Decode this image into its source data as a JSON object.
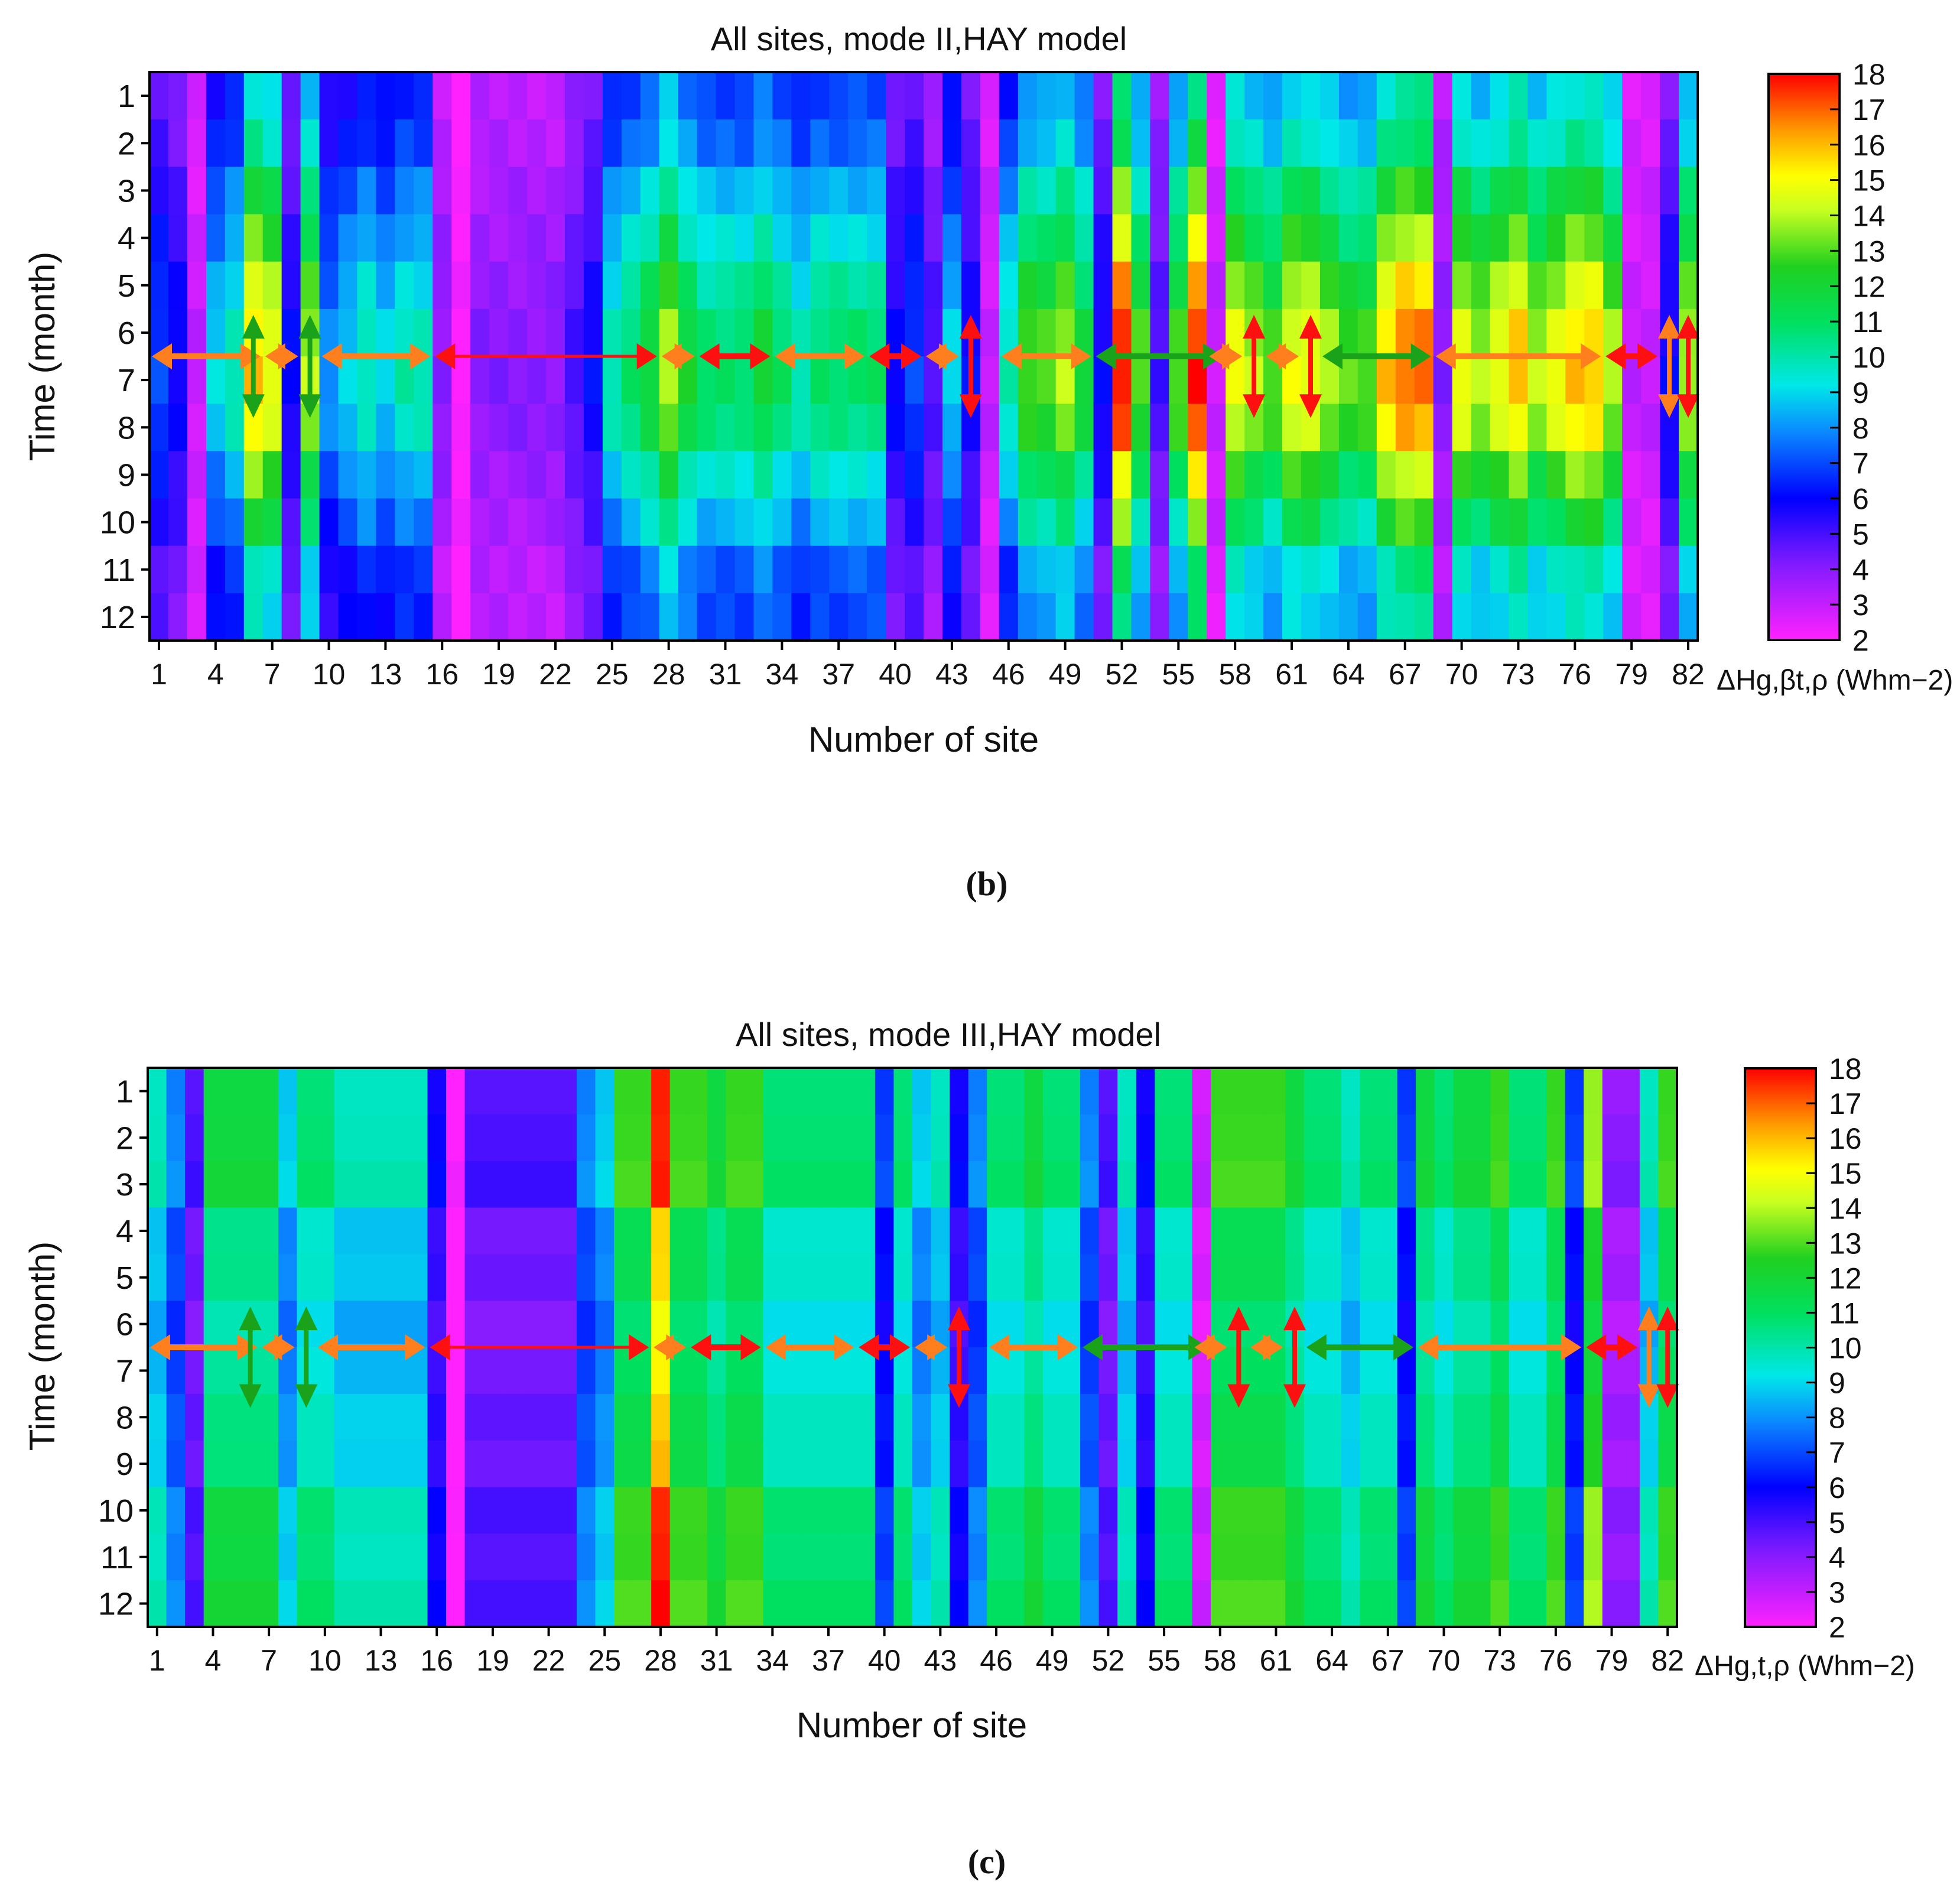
{
  "chart_data": [
    {
      "type": "heatmap",
      "title": "All sites, mode II,HAY model",
      "xlabel": "Number of site",
      "ylabel": "Time (month)",
      "x_range": [
        1,
        82
      ],
      "y_range": [
        1,
        12
      ],
      "x_ticks": [
        "1",
        "4",
        "7",
        "10",
        "13",
        "16",
        "19",
        "22",
        "25",
        "28",
        "31",
        "34",
        "37",
        "40",
        "43",
        "46",
        "49",
        "52",
        "55",
        "58",
        "61",
        "64",
        "67",
        "70",
        "73",
        "76",
        "79",
        "82"
      ],
      "y_ticks": [
        "1",
        "2",
        "3",
        "4",
        "5",
        "6",
        "7",
        "8",
        "9",
        "10",
        "11",
        "12"
      ],
      "colorbar_label": "ΔHg,βt,ρ (Whm−2)",
      "colorbar_ticks": [
        "18",
        "17",
        "16",
        "15",
        "14",
        "13",
        "12",
        "11",
        "10",
        "9",
        "8",
        "7",
        "6",
        "5",
        "4",
        "3",
        "2"
      ],
      "colorbar_range": [
        2,
        18
      ],
      "caption": "(b)",
      "estimated_site_peak_values": [
        7,
        6,
        3,
        9,
        10,
        16,
        15,
        6,
        14,
        8,
        9,
        10,
        9,
        10,
        10,
        4,
        2,
        4,
        4,
        4,
        4,
        4,
        5,
        6,
        10,
        11,
        12,
        14,
        12,
        11,
        11,
        11,
        12,
        11,
        10,
        11,
        11,
        11,
        11,
        6,
        7,
        5,
        9,
        6,
        3,
        10,
        13,
        13,
        14,
        12,
        6,
        18,
        13,
        5,
        13,
        18,
        3,
        15,
        14,
        13,
        15,
        15,
        14,
        13,
        13,
        16,
        17,
        17,
        4,
        15,
        14,
        15,
        16,
        14,
        15,
        16,
        16,
        14,
        3,
        3,
        6,
        14
      ],
      "arrows": [
        {
          "from": 1,
          "to": 6,
          "color": "orange",
          "dir": "h"
        },
        {
          "at": 6,
          "color": "green",
          "dir": "v"
        },
        {
          "from": 7,
          "to": 8,
          "color": "orange",
          "dir": "h"
        },
        {
          "at": 9,
          "color": "green",
          "dir": "v"
        },
        {
          "from": 10,
          "to": 15,
          "color": "orange",
          "dir": "h"
        },
        {
          "from": 16,
          "to": 27,
          "color": "red",
          "dir": "h",
          "thin": true
        },
        {
          "from": 28,
          "to": 29,
          "color": "orange",
          "dir": "h"
        },
        {
          "from": 30,
          "to": 33,
          "color": "red",
          "dir": "h"
        },
        {
          "from": 34,
          "to": 38,
          "color": "orange",
          "dir": "h"
        },
        {
          "from": 39,
          "to": 41,
          "color": "red",
          "dir": "h"
        },
        {
          "from": 42,
          "to": 43,
          "color": "orange",
          "dir": "h"
        },
        {
          "at": 44,
          "color": "red",
          "dir": "v"
        },
        {
          "from": 46,
          "to": 50,
          "color": "orange",
          "dir": "h"
        },
        {
          "from": 51,
          "to": 57,
          "color": "green",
          "dir": "h"
        },
        {
          "from": 57,
          "to": 58,
          "color": "orange",
          "dir": "h"
        },
        {
          "at": 59,
          "color": "red",
          "dir": "v"
        },
        {
          "from": 60,
          "to": 61,
          "color": "orange",
          "dir": "h"
        },
        {
          "at": 62,
          "color": "red",
          "dir": "v"
        },
        {
          "from": 63,
          "to": 68,
          "color": "green",
          "dir": "h"
        },
        {
          "from": 69,
          "to": 77,
          "color": "orange",
          "dir": "h"
        },
        {
          "from": 78,
          "to": 80,
          "color": "red",
          "dir": "h"
        },
        {
          "at": 81,
          "color": "orange",
          "dir": "v"
        },
        {
          "at": 82,
          "color": "red",
          "dir": "v"
        }
      ]
    },
    {
      "type": "heatmap",
      "title": "All sites, mode III,HAY model",
      "xlabel": "Number of site",
      "ylabel": "Time (month)",
      "x_range": [
        1,
        82
      ],
      "y_range": [
        1,
        12
      ],
      "x_ticks": [
        "1",
        "4",
        "7",
        "10",
        "13",
        "16",
        "19",
        "22",
        "25",
        "28",
        "31",
        "34",
        "37",
        "40",
        "43",
        "46",
        "49",
        "52",
        "55",
        "58",
        "61",
        "64",
        "67",
        "70",
        "73",
        "76",
        "79",
        "82"
      ],
      "y_ticks": [
        "1",
        "2",
        "3",
        "4",
        "5",
        "6",
        "7",
        "8",
        "9",
        "10",
        "11",
        "12"
      ],
      "colorbar_label": "ΔHg,t,ρ (Whm−2)",
      "colorbar_ticks": [
        "18",
        "17",
        "16",
        "15",
        "14",
        "13",
        "12",
        "11",
        "10",
        "9",
        "8",
        "7",
        "6",
        "5",
        "4",
        "3",
        "2"
      ],
      "colorbar_range": [
        2,
        18
      ],
      "caption": "(c)",
      "estimated_site_peak_values": [
        10,
        8,
        5,
        12,
        12,
        12,
        12,
        9,
        11,
        11,
        10,
        10,
        10,
        10,
        10,
        6,
        2,
        5,
        5,
        5,
        5,
        5,
        5,
        8,
        9,
        13,
        13,
        18,
        13,
        13,
        12,
        13,
        13,
        11,
        11,
        11,
        11,
        11,
        11,
        7,
        11,
        9,
        10,
        6,
        8,
        11,
        11,
        12,
        11,
        11,
        8,
        5,
        10,
        6,
        11,
        11,
        3,
        13,
        13,
        13,
        13,
        12,
        11,
        11,
        10,
        11,
        11,
        7,
        12,
        11,
        12,
        12,
        13,
        11,
        11,
        13,
        7,
        14,
        4,
        4,
        10,
        13
      ],
      "arrows": [
        {
          "from": 1,
          "to": 6,
          "color": "orange",
          "dir": "h"
        },
        {
          "at": 6,
          "color": "green",
          "dir": "v"
        },
        {
          "from": 7,
          "to": 8,
          "color": "orange",
          "dir": "h"
        },
        {
          "at": 9,
          "color": "green",
          "dir": "v"
        },
        {
          "from": 10,
          "to": 15,
          "color": "orange",
          "dir": "h"
        },
        {
          "from": 16,
          "to": 27,
          "color": "red",
          "dir": "h",
          "thin": true
        },
        {
          "from": 28,
          "to": 29,
          "color": "orange",
          "dir": "h"
        },
        {
          "from": 30,
          "to": 33,
          "color": "red",
          "dir": "h"
        },
        {
          "from": 34,
          "to": 38,
          "color": "orange",
          "dir": "h"
        },
        {
          "from": 39,
          "to": 41,
          "color": "red",
          "dir": "h"
        },
        {
          "from": 42,
          "to": 43,
          "color": "orange",
          "dir": "h"
        },
        {
          "at": 44,
          "color": "red",
          "dir": "v"
        },
        {
          "from": 46,
          "to": 50,
          "color": "orange",
          "dir": "h"
        },
        {
          "from": 51,
          "to": 57,
          "color": "green",
          "dir": "h"
        },
        {
          "from": 57,
          "to": 58,
          "color": "orange",
          "dir": "h"
        },
        {
          "at": 59,
          "color": "red",
          "dir": "v"
        },
        {
          "from": 60,
          "to": 61,
          "color": "orange",
          "dir": "h"
        },
        {
          "at": 62,
          "color": "red",
          "dir": "v"
        },
        {
          "from": 63,
          "to": 68,
          "color": "green",
          "dir": "h"
        },
        {
          "from": 69,
          "to": 77,
          "color": "orange",
          "dir": "h"
        },
        {
          "from": 78,
          "to": 80,
          "color": "red",
          "dir": "h"
        },
        {
          "at": 81,
          "color": "orange",
          "dir": "v"
        },
        {
          "at": 82,
          "color": "red",
          "dir": "v"
        }
      ]
    }
  ],
  "colors": {
    "orange": "#ff7f1e",
    "green": "#1aa31a",
    "red": "#ff1010",
    "frame": "#000000"
  }
}
